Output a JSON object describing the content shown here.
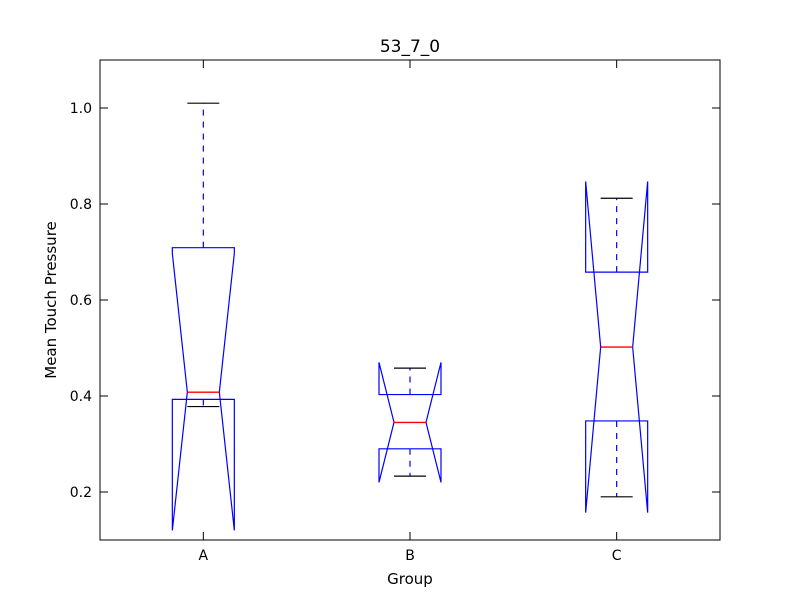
{
  "chart_data": {
    "type": "boxplot",
    "notched": true,
    "title": "53_7_0",
    "xlabel": "Group",
    "ylabel": "Mean Touch Pressure",
    "categories": [
      "A",
      "B",
      "C"
    ],
    "ylim": [
      0.1,
      1.1
    ],
    "yticks": [
      "0.2",
      "0.4",
      "0.6",
      "0.8",
      "1.0"
    ],
    "grid": false,
    "boxes": [
      {
        "category": "A",
        "q1": 0.393,
        "q3": 0.709,
        "median": 0.408,
        "whisker_low": 0.378,
        "whisker_high": 1.01,
        "notch_low": 0.12,
        "notch_high": 0.697
      },
      {
        "category": "B",
        "q1": 0.29,
        "q3": 0.403,
        "median": 0.345,
        "whisker_low": 0.233,
        "whisker_high": 0.458,
        "notch_low": 0.22,
        "notch_high": 0.47
      },
      {
        "category": "C",
        "q1": 0.348,
        "q3": 0.658,
        "median": 0.502,
        "whisker_low": 0.19,
        "whisker_high": 0.812,
        "notch_low": 0.157,
        "notch_high": 0.847
      }
    ],
    "colors": {
      "box": "#0000ff",
      "median": "#ff0000",
      "whisker": "#0000ff",
      "cap": "#000000"
    }
  }
}
